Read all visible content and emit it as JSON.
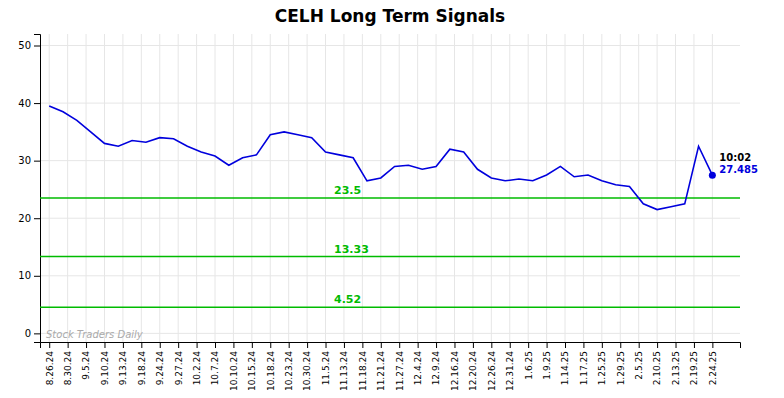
{
  "chart_data": {
    "type": "line",
    "title": "CELH Long Term Signals",
    "x": [
      0,
      0.75,
      1.5,
      2.25,
      3,
      3.75,
      4.5,
      5.25,
      6,
      6.75,
      7.5,
      8.25,
      9,
      9.75,
      10.5,
      11.25,
      12,
      12.75,
      13.5,
      14.25,
      15,
      15.75,
      16.5,
      17.25,
      18,
      18.75,
      19.5,
      20.25,
      21,
      21.75,
      22.5,
      23.25,
      24,
      24.75,
      25.5,
      26.25,
      27,
      27.75,
      28.5,
      29.25,
      30,
      30.75,
      31.5,
      32.25,
      33,
      33.75,
      34.5,
      35.25,
      36
    ],
    "values": [
      39.5,
      38.5,
      37.0,
      35.0,
      33.0,
      32.5,
      33.5,
      33.2,
      34.0,
      33.8,
      32.5,
      31.5,
      30.8,
      29.2,
      30.5,
      31.0,
      34.5,
      35.0,
      34.5,
      34.0,
      31.5,
      31.0,
      30.5,
      26.5,
      27.0,
      29.0,
      29.2,
      28.5,
      29.0,
      32.0,
      31.5,
      28.5,
      27.0,
      26.5,
      26.8,
      26.5,
      27.5,
      29.0,
      27.2,
      27.5,
      26.5,
      25.8,
      25.5,
      22.5,
      21.5,
      22.0,
      22.5,
      32.5,
      27.485
    ],
    "color": "#0000dd",
    "xlim": [
      -0.5,
      37.5
    ],
    "xticks": [
      {
        "value": 0,
        "label": "8.26.24"
      },
      {
        "value": 1,
        "label": "8.30.24"
      },
      {
        "value": 2,
        "label": "9.5.24"
      },
      {
        "value": 3,
        "label": "9.10.24"
      },
      {
        "value": 4,
        "label": "9.13.24"
      },
      {
        "value": 5,
        "label": "9.18.24"
      },
      {
        "value": 6,
        "label": "9.24.24"
      },
      {
        "value": 7,
        "label": "9.27.24"
      },
      {
        "value": 8,
        "label": "10.2.24"
      },
      {
        "value": 9,
        "label": "10.7.24"
      },
      {
        "value": 10,
        "label": "10.10.24"
      },
      {
        "value": 11,
        "label": "10.15.24"
      },
      {
        "value": 12,
        "label": "10.18.24"
      },
      {
        "value": 13,
        "label": "10.23.24"
      },
      {
        "value": 14,
        "label": "10.30.24"
      },
      {
        "value": 15,
        "label": "11.5.24"
      },
      {
        "value": 16,
        "label": "11.13.24"
      },
      {
        "value": 17,
        "label": "11.18.24"
      },
      {
        "value": 18,
        "label": "11.21.24"
      },
      {
        "value": 19,
        "label": "11.27.24"
      },
      {
        "value": 20,
        "label": "12.4.24"
      },
      {
        "value": 21,
        "label": "12.9.24"
      },
      {
        "value": 22,
        "label": "12.16.24"
      },
      {
        "value": 23,
        "label": "12.20.24"
      },
      {
        "value": 24,
        "label": "12.26.24"
      },
      {
        "value": 25,
        "label": "12.31.24"
      },
      {
        "value": 26,
        "label": "1.6.25"
      },
      {
        "value": 27,
        "label": "1.9.25"
      },
      {
        "value": 28,
        "label": "1.14.25"
      },
      {
        "value": 29,
        "label": "1.17.25"
      },
      {
        "value": 30,
        "label": "1.25.25"
      },
      {
        "value": 31,
        "label": "1.29.25"
      },
      {
        "value": 32,
        "label": "2.5.25"
      },
      {
        "value": 33,
        "label": "2.10.25"
      },
      {
        "value": 34,
        "label": "2.13.25"
      },
      {
        "value": 35,
        "label": "2.19.25"
      },
      {
        "value": 36,
        "label": "2.24.25"
      }
    ],
    "ylim": [
      -1.5,
      52
    ],
    "yticks": [
      0,
      10,
      20,
      30,
      40,
      50
    ],
    "grid": true,
    "reference_lines": [
      {
        "value": 23.5,
        "label": "23.5",
        "color": "#00bb00"
      },
      {
        "value": 13.33,
        "label": "13.33",
        "color": "#00bb00"
      },
      {
        "value": 4.52,
        "label": "4.52",
        "color": "#00bb00"
      }
    ],
    "annotations": [
      {
        "text": "10:02",
        "color": "#000000"
      },
      {
        "text": "27.485",
        "color": "#0000dd"
      }
    ],
    "watermark": "Stock Traders Daily"
  }
}
